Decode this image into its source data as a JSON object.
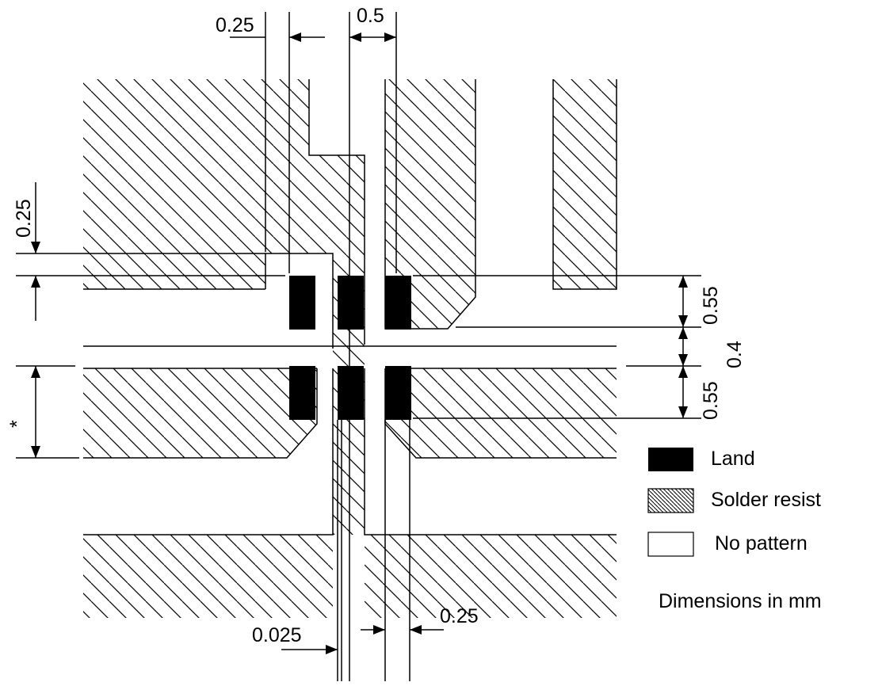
{
  "dimensions": {
    "top_left": "0.25",
    "top_right": "0.5",
    "left_vertical": "0.25",
    "right_upper": "0.55",
    "right_middle": "0.4",
    "right_lower": "0.55",
    "left_star": "*",
    "bottom_left": "0.025",
    "bottom_right": "0.25"
  },
  "legend": {
    "items": [
      {
        "label": "Land",
        "swatch": "solid-black"
      },
      {
        "label": "Solder resist",
        "swatch": "hatched"
      },
      {
        "label": "No pattern",
        "swatch": "empty"
      }
    ],
    "units_note": "Dimensions in mm"
  },
  "colors": {
    "land": "#000000",
    "line": "#000000",
    "background": "#ffffff"
  }
}
